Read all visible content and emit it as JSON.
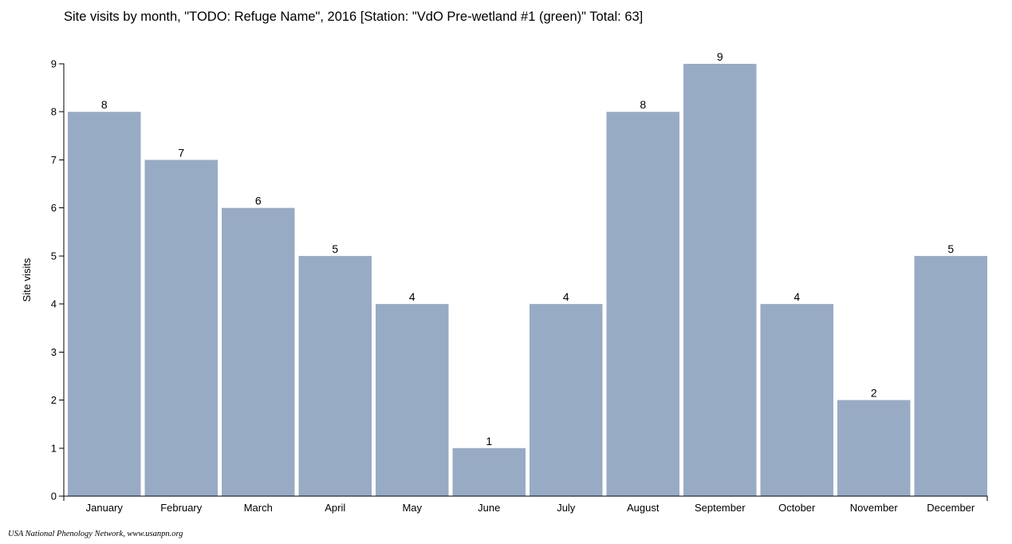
{
  "chart_data": {
    "type": "bar",
    "title": "Site visits by month, \"TODO: Refuge Name\", 2016 [Station: \"VdO Pre-wetland #1 (green)\" Total: 63]",
    "ylabel": "Site visits",
    "xlabel": "",
    "categories": [
      "January",
      "February",
      "March",
      "April",
      "May",
      "June",
      "July",
      "August",
      "September",
      "October",
      "November",
      "December"
    ],
    "values": [
      8,
      7,
      6,
      5,
      4,
      1,
      4,
      8,
      9,
      4,
      2,
      5
    ],
    "ylim": [
      0,
      9
    ],
    "yticks": [
      "0",
      "1",
      "2",
      "3",
      "4",
      "5",
      "6",
      "7",
      "8",
      "9"
    ],
    "grid": false,
    "legend": "none",
    "bar_color": "#98abc5"
  },
  "footer": "USA National Phenology Network, www.usanpn.org"
}
